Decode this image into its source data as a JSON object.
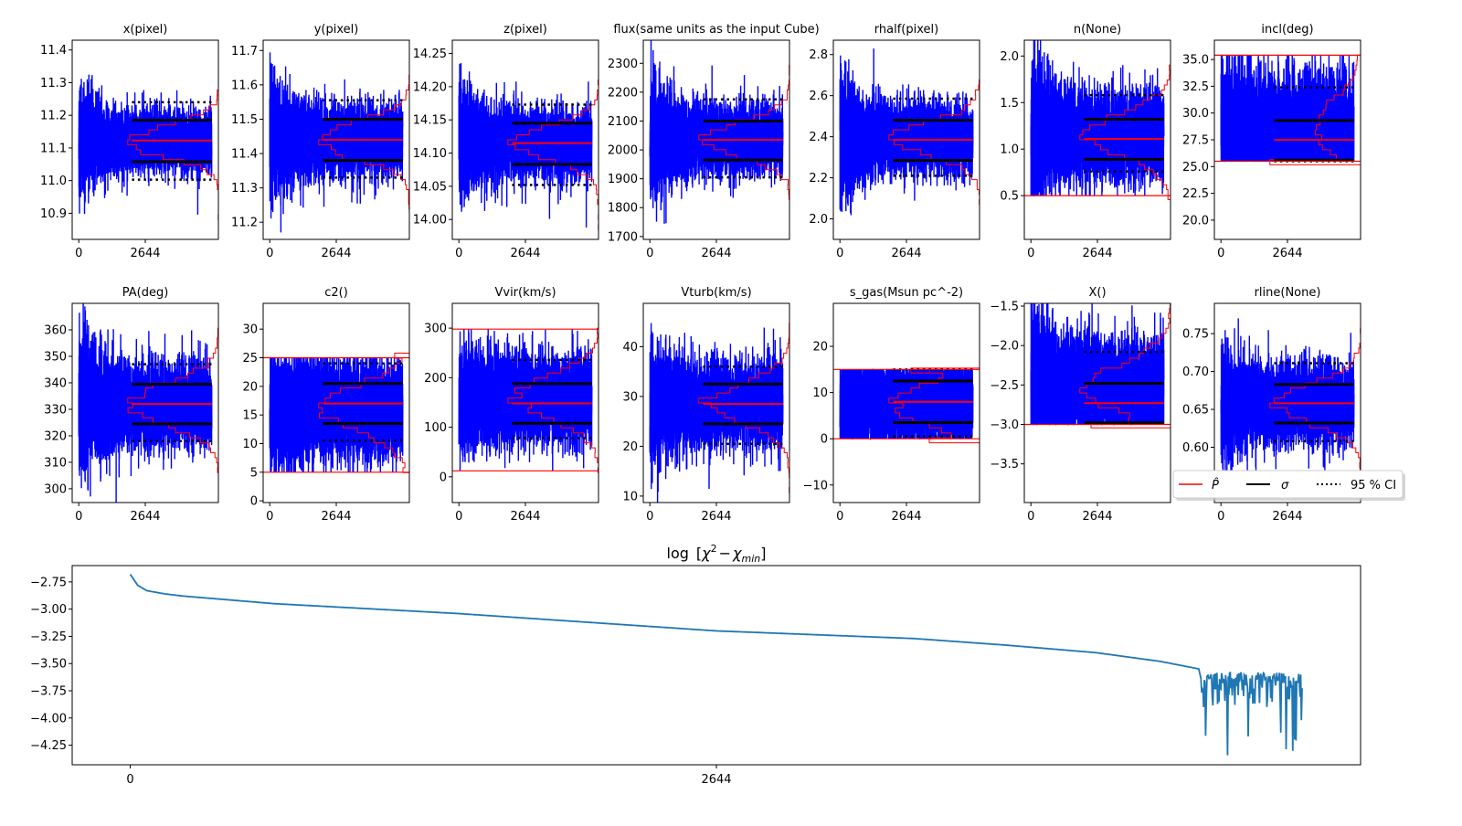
{
  "chart_data": {
    "type": "line",
    "description_kind": "MCMC trace grid",
    "x_tick_labels": [
      "0",
      "2644"
    ],
    "x_ticks": [
      0,
      2644
    ],
    "n_samples": 5288,
    "xlim": [
      -262,
      5550
    ],
    "burn_in_start": 2115,
    "colors": {
      "trace": "#0000ff",
      "posterior": "#ff0000",
      "sigma": "#000000",
      "ci": "#000000",
      "chi2": "#1f77b4"
    },
    "legend": {
      "placement": "right of row 2",
      "entries": [
        {
          "label": "P̂",
          "style": "red-solid"
        },
        {
          "label": "σ",
          "style": "black-solid"
        },
        {
          "label": "95 % CI",
          "style": "black-dotted"
        }
      ]
    },
    "subplots": [
      {
        "title": "x(pixel)",
        "ylim": [
          10.82,
          11.43
        ],
        "yticks": [
          10.9,
          11.0,
          11.1,
          11.2,
          11.3,
          11.4
        ],
        "ytick_labels": [
          "10.9",
          "11.0",
          "11.1",
          "11.2",
          "11.3",
          "11.4"
        ],
        "median": 11.123,
        "sigma": [
          11.058,
          11.185
        ],
        "ci95": [
          11.003,
          11.24
        ],
        "bounds": [],
        "trace": {
          "center": 11.12,
          "spread_start": 0.085,
          "spread_end": 0.045
        }
      },
      {
        "title": "y(pixel)",
        "ylim": [
          11.15,
          11.73
        ],
        "yticks": [
          11.2,
          11.3,
          11.4,
          11.5,
          11.6,
          11.7
        ],
        "ytick_labels": [
          "11.2",
          "11.3",
          "11.4",
          "11.5",
          "11.6",
          "11.7"
        ],
        "median": 11.44,
        "sigma": [
          11.38,
          11.5
        ],
        "ci95": [
          11.33,
          11.555
        ],
        "bounds": [],
        "trace": {
          "center": 11.44,
          "spread_start": 0.09,
          "spread_end": 0.05
        }
      },
      {
        "title": "z(pixel)",
        "ylim": [
          13.97,
          14.27
        ],
        "yticks": [
          14.0,
          14.05,
          14.1,
          14.15,
          14.2,
          14.25
        ],
        "ytick_labels": [
          "14.00",
          "14.05",
          "14.10",
          "14.15",
          "14.20",
          "14.25"
        ],
        "median": 14.115,
        "sigma": [
          14.083,
          14.145
        ],
        "ci95": [
          14.052,
          14.173
        ],
        "bounds": [],
        "trace": {
          "center": 14.115,
          "spread_start": 0.045,
          "spread_end": 0.025
        }
      },
      {
        "title": "flux(same units as the input Cube)",
        "ylim": [
          1690,
          2380
        ],
        "yticks": [
          1700,
          1800,
          1900,
          2000,
          2100,
          2200,
          2300
        ],
        "ytick_labels": [
          "1700",
          "1800",
          "1900",
          "2000",
          "2100",
          "2200",
          "2300"
        ],
        "median": 2035,
        "sigma": [
          1965,
          2100
        ],
        "ci95": [
          1905,
          2175
        ],
        "bounds": [],
        "trace": {
          "center": 2035,
          "spread_start": 110,
          "spread_end": 55
        }
      },
      {
        "title": "rhalf(pixel)",
        "ylim": [
          1.9,
          2.87
        ],
        "yticks": [
          2.0,
          2.2,
          2.4,
          2.6,
          2.8
        ],
        "ytick_labels": [
          "2.0",
          "2.2",
          "2.4",
          "2.6",
          "2.8"
        ],
        "median": 2.385,
        "sigma": [
          2.285,
          2.48
        ],
        "ci95": [
          2.21,
          2.585
        ],
        "bounds": [],
        "trace": {
          "center": 2.39,
          "spread_start": 0.17,
          "spread_end": 0.08
        }
      },
      {
        "title": "n(None)",
        "ylim": [
          0.03,
          2.17
        ],
        "yticks": [
          0.5,
          1.0,
          1.5,
          2.0
        ],
        "ytick_labels": [
          "0.5",
          "1.0",
          "1.5",
          "2.0"
        ],
        "median": 1.11,
        "sigma": [
          0.89,
          1.32
        ],
        "ci95": [
          0.76,
          1.58
        ],
        "bounds": [
          0.5
        ],
        "trace": {
          "center": 1.15,
          "spread_start": 0.45,
          "spread_end": 0.22
        }
      },
      {
        "title": "incl(deg)",
        "ylim": [
          18.2,
          36.8
        ],
        "yticks": [
          20.0,
          22.5,
          25.0,
          27.5,
          30.0,
          32.5,
          35.0
        ],
        "ytick_labels": [
          "20.0",
          "22.5",
          "25.0",
          "27.5",
          "30.0",
          "32.5",
          "35.0"
        ],
        "median": 27.5,
        "sigma": [
          25.6,
          29.3
        ],
        "ci95": [
          25.5,
          32.4
        ],
        "bounds": [
          25.5,
          35.4
        ],
        "trace": {
          "center": 28.5,
          "spread_start": 3.5,
          "spread_end": 2.6
        }
      },
      {
        "title": "PA(deg)",
        "ylim": [
          294.8,
          370
        ],
        "yticks": [
          300,
          310,
          320,
          330,
          340,
          350,
          360
        ],
        "ytick_labels": [
          "300",
          "310",
          "320",
          "330",
          "340",
          "350",
          "360"
        ],
        "median": 332,
        "sigma": [
          324.5,
          339.5
        ],
        "ci95": [
          318,
          347
        ],
        "bounds": [],
        "trace": {
          "center": 332,
          "spread_start": 13,
          "spread_end": 7.5
        }
      },
      {
        "title": "c2()",
        "ylim": [
          -0.3,
          34.5
        ],
        "yticks": [
          0,
          5,
          10,
          15,
          20,
          25,
          30
        ],
        "ytick_labels": [
          "0",
          "5",
          "10",
          "15",
          "20",
          "25",
          "30"
        ],
        "median": 17,
        "sigma": [
          13.5,
          20.5
        ],
        "ci95": [
          10.5,
          24
        ],
        "bounds": [
          5,
          25
        ],
        "trace": {
          "center": 16,
          "spread_start": 5,
          "spread_end": 4
        }
      },
      {
        "title": "Vvir(km/s)",
        "ylim": [
          -52,
          350
        ],
        "yticks": [
          0,
          100,
          200,
          300
        ],
        "ytick_labels": [
          "0",
          "100",
          "200",
          "300"
        ],
        "median": 148,
        "sigma": [
          108,
          188
        ],
        "ci95": [
          78,
          236
        ],
        "bounds": [
          12,
          298
        ],
        "trace": {
          "center": 160,
          "spread_start": 55,
          "spread_end": 42
        }
      },
      {
        "title": "Vturb(km/s)",
        "ylim": [
          8.7,
          48.7
        ],
        "yticks": [
          10,
          20,
          30,
          40
        ],
        "ytick_labels": [
          "10",
          "20",
          "30",
          "40"
        ],
        "median": 28.5,
        "sigma": [
          24.5,
          32.5
        ],
        "ci95": [
          20.5,
          36
        ],
        "bounds": [],
        "trace": {
          "center": 28.5,
          "spread_start": 6.5,
          "spread_end": 4
        }
      },
      {
        "title": "s_gas(Msun pc^-2)",
        "ylim": [
          -13.8,
          29.3
        ],
        "yticks": [
          -10,
          0,
          10,
          20
        ],
        "ytick_labels": [
          "−10",
          "0",
          "10",
          "20"
        ],
        "median": 8,
        "sigma": [
          3.5,
          12.5
        ],
        "ci95": [
          0.5,
          15
        ],
        "bounds": [
          0,
          15
        ],
        "trace": {
          "center": 7.5,
          "spread_start": 5,
          "spread_end": 4.5
        }
      },
      {
        "title": "X()",
        "ylim": [
          -3.99,
          -1.465
        ],
        "yticks": [
          -3.5,
          -3.0,
          -2.5,
          -2.0,
          -1.5
        ],
        "ytick_labels": [
          "−3.5",
          "−3.0",
          "−2.5",
          "−2.0",
          "−1.5"
        ],
        "median": -2.73,
        "sigma": [
          -2.98,
          -2.48
        ],
        "ci95": [
          -2.99,
          -2.08
        ],
        "bounds": [
          -3.0
        ],
        "trace": {
          "center": -2.55,
          "spread_start": 0.55,
          "spread_end": 0.3
        }
      },
      {
        "title": "rline(None)",
        "ylim": [
          0.527,
          0.79
        ],
        "yticks": [
          0.6,
          0.65,
          0.7,
          0.75
        ],
        "ytick_labels": [
          "0.60",
          "0.65",
          "0.70",
          "0.75"
        ],
        "median": 0.658,
        "sigma": [
          0.632,
          0.683
        ],
        "ci95": [
          0.608,
          0.711
        ],
        "bounds": [],
        "trace": {
          "center": 0.658,
          "spread_start": 0.04,
          "spread_end": 0.025
        }
      }
    ],
    "bottom": {
      "title_parts": {
        "log": "log",
        "open": "[",
        "chi": "χ",
        "sup": "2",
        "minus": "−",
        "sub": "min",
        "close": "]"
      },
      "ylim": [
        -4.43,
        -2.6
      ],
      "yticks": [
        -4.25,
        -4.0,
        -3.75,
        -3.5,
        -3.25,
        -3.0,
        -2.75
      ],
      "ytick_labels": [
        "−4.25",
        "−4.00",
        "−3.75",
        "−3.50",
        "−3.25",
        "−3.00",
        "−2.75"
      ],
      "curve": {
        "x": [
          0,
          33,
          74,
          156,
          239,
          651,
          1474,
          2644,
          3534,
          3946,
          4357,
          4646,
          4823
        ],
        "y": [
          -2.68,
          -2.78,
          -2.83,
          -2.86,
          -2.88,
          -2.95,
          -3.04,
          -3.2,
          -3.27,
          -3.33,
          -3.4,
          -3.48,
          -3.55
        ]
      },
      "noisy_tail": {
        "x_start": 4830,
        "x_end": 5288,
        "y_top": -3.58,
        "y_typical_low": -3.9,
        "y_min": -4.35
      }
    }
  }
}
